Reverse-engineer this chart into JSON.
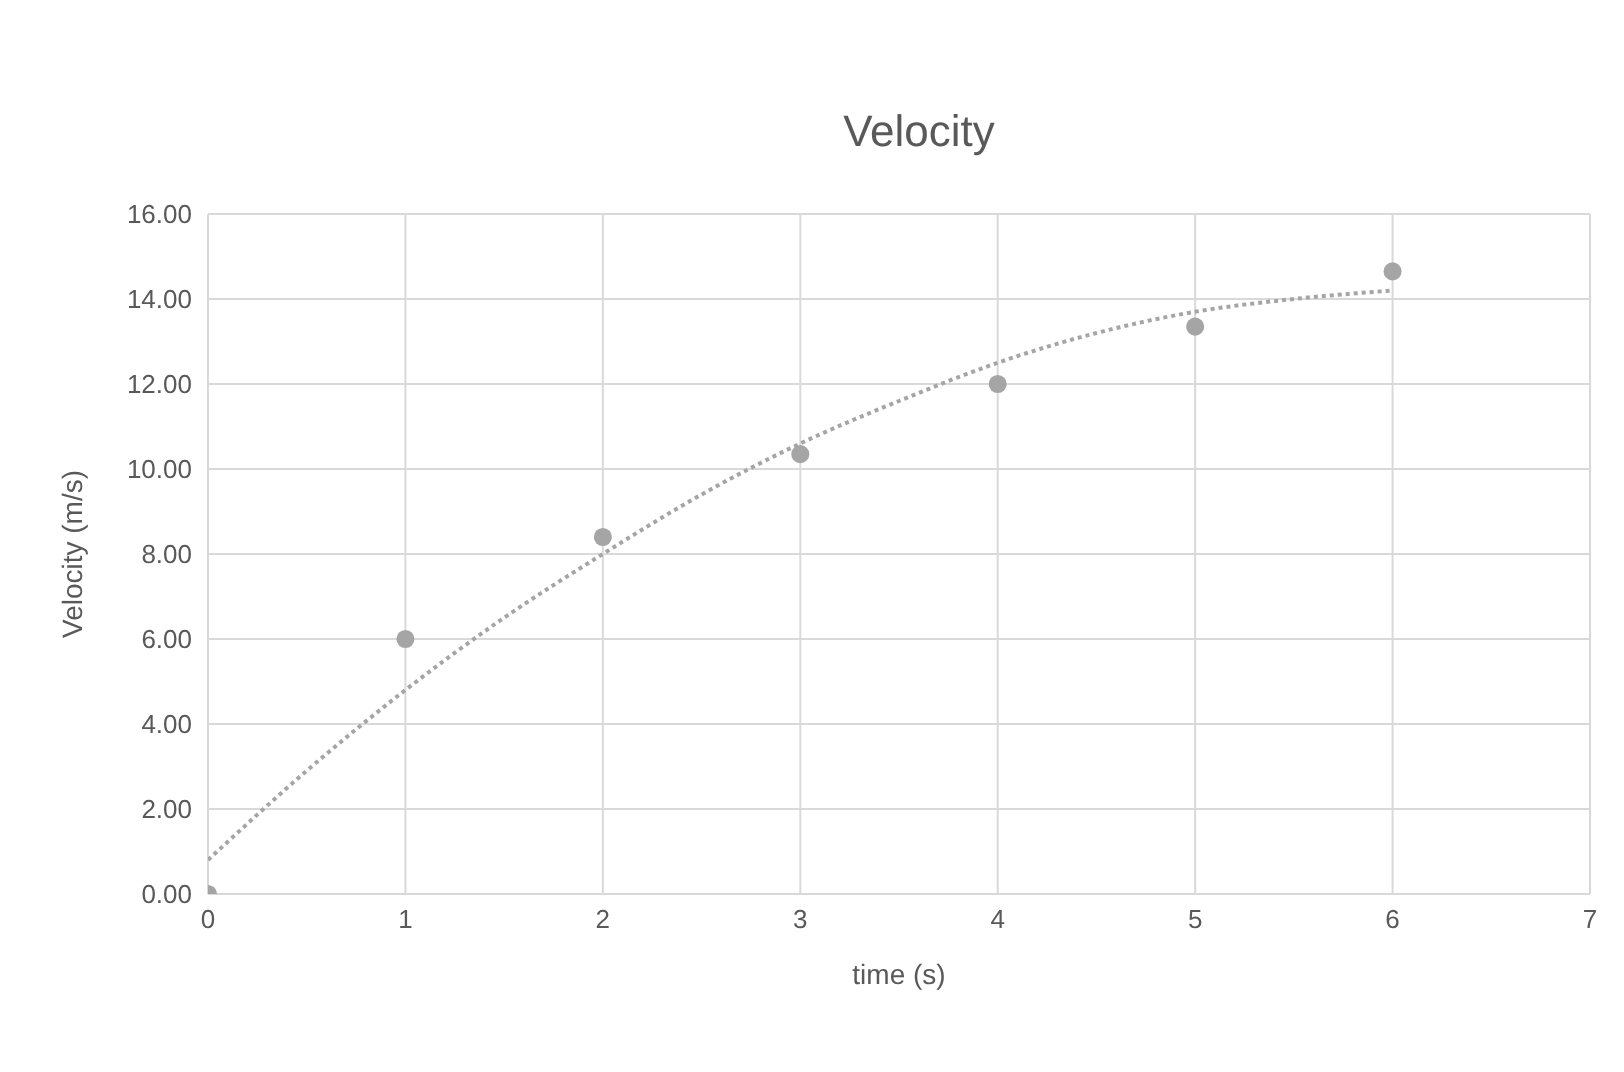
{
  "chart_data": {
    "type": "scatter",
    "title": "Velocity",
    "xlabel": "time (s)",
    "ylabel": "Velocity (m/s)",
    "x": [
      0,
      1,
      2,
      3,
      4,
      5,
      6
    ],
    "series": [
      {
        "color": "#a5a5a5",
        "marker": "circle",
        "values": [
          0,
          6.0,
          8.4,
          10.35,
          12.0,
          13.35,
          14.65
        ]
      },
      {
        "type": "line",
        "color": "#a5a5a5",
        "marker": "none",
        "line_style": "dotted",
        "x": [
          0,
          0.5,
          1,
          1.5,
          2,
          2.5,
          3,
          3.5,
          4,
          4.5,
          5,
          5.5,
          6
        ],
        "values": [
          0.8,
          2.9,
          4.8,
          6.5,
          8.0,
          9.4,
          10.6,
          11.6,
          12.5,
          13.2,
          13.7,
          14.0,
          14.2
        ]
      }
    ],
    "xlim": [
      0,
      7
    ],
    "xticks": [
      0,
      1,
      2,
      3,
      4,
      5,
      6,
      7
    ],
    "ylim": [
      0,
      16
    ],
    "yticks": [
      {
        "value": 0,
        "label": "0.00"
      },
      {
        "value": 2,
        "label": "2.00"
      },
      {
        "value": 4,
        "label": "4.00"
      },
      {
        "value": 6,
        "label": "6.00"
      },
      {
        "value": 8,
        "label": "8.00"
      },
      {
        "value": 10,
        "label": "10.00"
      },
      {
        "value": 12,
        "label": "12.00"
      },
      {
        "value": 14,
        "label": "14.00"
      },
      {
        "value": 16,
        "label": "16.00"
      }
    ],
    "grid": true,
    "legend": false
  }
}
